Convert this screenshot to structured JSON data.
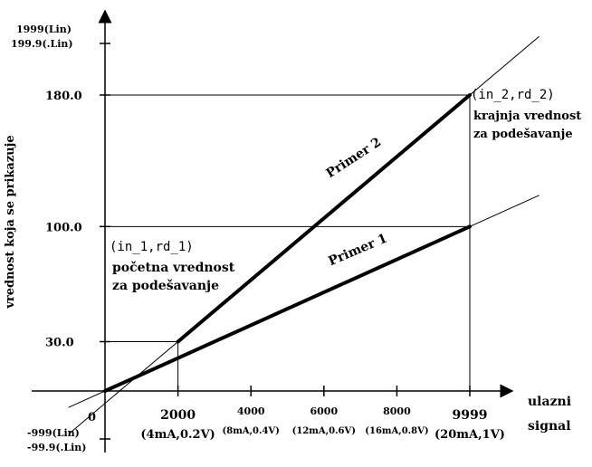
{
  "diagram": {
    "y_axis": {
      "label": "vrednost koja se prikazuje",
      "ticks": [
        {
          "value": 30.0,
          "label": "30.0"
        },
        {
          "value": 100.0,
          "label": "100.0"
        },
        {
          "value": 180.0,
          "label": "180.0"
        }
      ],
      "top_label_1": "1999(Lin)",
      "top_label_2": "199.9(.Lin)",
      "bottom_label_1": "-999(Lin)",
      "bottom_label_2": "-99.9(.Lin)"
    },
    "x_axis": {
      "label_line1": "ulazni",
      "label_line2": "signal",
      "origin_label": "0",
      "ticks": [
        {
          "value": 2000,
          "label": "2000",
          "sub": "(4mA,0.2V)"
        },
        {
          "value": 4000,
          "label": "4000",
          "sub": "(8mA,0.4V)"
        },
        {
          "value": 6000,
          "label": "6000",
          "sub": "(12mA,0.6V)"
        },
        {
          "value": 8000,
          "label": "8000",
          "sub": "(16mA,0.8V)"
        },
        {
          "value": 9999,
          "label": "9999",
          "sub": "(20mA,1V)"
        }
      ]
    },
    "lines": [
      {
        "name": "Primer 1",
        "x": [
          0,
          9999
        ],
        "y": [
          0,
          100.0
        ]
      },
      {
        "name": "Primer 2",
        "x": [
          2000,
          9999
        ],
        "y": [
          30.0,
          180.0
        ]
      }
    ],
    "start_point": {
      "code": "(in_1,rd_1)",
      "text_line1": "početna vrednost",
      "text_line2": "za podešavanje"
    },
    "end_point": {
      "code": "(in_2,rd_2)",
      "text_line1": "krajnja vrednost",
      "text_line2": "za podešavanje"
    }
  }
}
